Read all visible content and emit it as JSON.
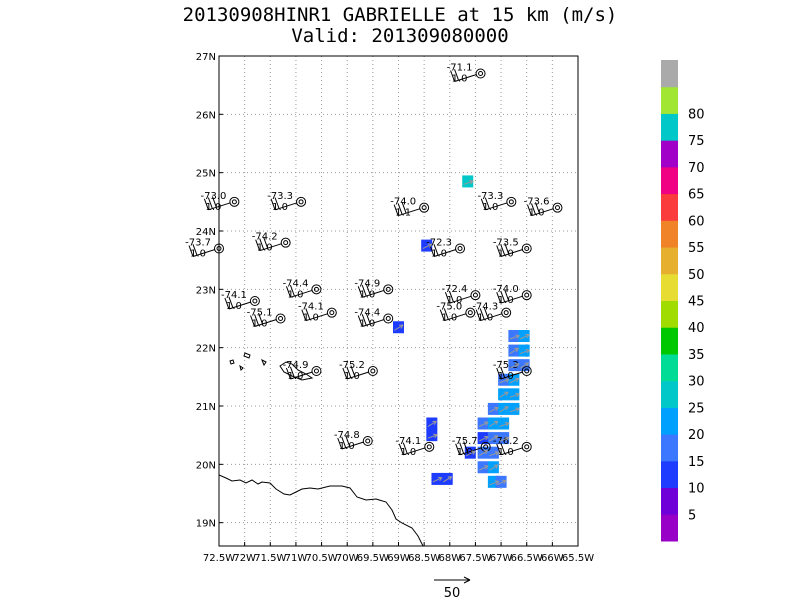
{
  "title": {
    "line1": "20130908HINR1 GABRIELLE at 15 km (m/s)",
    "line2": "Valid: 201309080000"
  },
  "map": {
    "lon_range": [
      -72.5,
      -65.5
    ],
    "lat_range": [
      18.6,
      27.0
    ],
    "lon_ticks": [
      {
        "value": -72.5,
        "label": "72.5W"
      },
      {
        "value": -72.0,
        "label": "72W"
      },
      {
        "value": -71.5,
        "label": "71.5W"
      },
      {
        "value": -71.0,
        "label": "71W"
      },
      {
        "value": -70.5,
        "label": "70.5W"
      },
      {
        "value": -70.0,
        "label": "70W"
      },
      {
        "value": -69.5,
        "label": "69.5W"
      },
      {
        "value": -69.0,
        "label": "69W"
      },
      {
        "value": -68.5,
        "label": "68.5W"
      },
      {
        "value": -68.0,
        "label": "68W"
      },
      {
        "value": -67.5,
        "label": "67.5W"
      },
      {
        "value": -67.0,
        "label": "67W"
      },
      {
        "value": -66.5,
        "label": "66.5W"
      },
      {
        "value": -66.0,
        "label": "66W"
      },
      {
        "value": -65.5,
        "label": "65.5W"
      }
    ],
    "lat_ticks": [
      {
        "value": 19,
        "label": "19N"
      },
      {
        "value": 20,
        "label": "20N"
      },
      {
        "value": 21,
        "label": "21N"
      },
      {
        "value": 22,
        "label": "22N"
      },
      {
        "value": 23,
        "label": "23N"
      },
      {
        "value": 24,
        "label": "24N"
      },
      {
        "value": 25,
        "label": "25N"
      },
      {
        "value": 26,
        "label": "26N"
      },
      {
        "value": 27,
        "label": "27N"
      }
    ],
    "grid_dotted": true,
    "vector_reference": "50",
    "colors": {
      "coastline": "#000000",
      "grid": "#999999",
      "station": "#000000",
      "vector": "#999999"
    }
  },
  "stations": [
    {
      "lon": -67.4,
      "lat": 26.7,
      "temp": "-71.1",
      "value": "1.0"
    },
    {
      "lon": -72.2,
      "lat": 24.5,
      "temp": "-73.0",
      "value": "1.0"
    },
    {
      "lon": -70.9,
      "lat": 24.5,
      "temp": "-73.3",
      "value": "1.0"
    },
    {
      "lon": -68.5,
      "lat": 24.4,
      "temp": "-74.0",
      "value": "1.1"
    },
    {
      "lon": -66.8,
      "lat": 24.5,
      "temp": "-73.3",
      "value": "1.0"
    },
    {
      "lon": -65.9,
      "lat": 24.4,
      "temp": "-73.6",
      "value": "1.0"
    },
    {
      "lon": -72.5,
      "lat": 23.7,
      "temp": "-73.7",
      "value": "1.0"
    },
    {
      "lon": -71.2,
      "lat": 23.8,
      "temp": "-74.2",
      "value": "1.0"
    },
    {
      "lon": -67.8,
      "lat": 23.7,
      "temp": "-72.3",
      "value": "1.0"
    },
    {
      "lon": -66.5,
      "lat": 23.7,
      "temp": "-73.5",
      "value": "1.0"
    },
    {
      "lon": -70.6,
      "lat": 23.0,
      "temp": "-74.4",
      "value": "1.0"
    },
    {
      "lon": -69.2,
      "lat": 23.0,
      "temp": "-74.9",
      "value": "1.0"
    },
    {
      "lon": -67.5,
      "lat": 22.9,
      "temp": "-72.4",
      "value": "1.0"
    },
    {
      "lon": -66.5,
      "lat": 22.9,
      "temp": "-74.0",
      "value": "1.0"
    },
    {
      "lon": -71.8,
      "lat": 22.8,
      "temp": "-74.1",
      "value": "1.0"
    },
    {
      "lon": -71.3,
      "lat": 22.5,
      "temp": "-75.1",
      "value": "1.0"
    },
    {
      "lon": -70.3,
      "lat": 22.6,
      "temp": "-74.1",
      "value": "1.0"
    },
    {
      "lon": -69.2,
      "lat": 22.5,
      "temp": "-74.4",
      "value": "1.0"
    },
    {
      "lon": -67.6,
      "lat": 22.6,
      "temp": "-75.0",
      "value": "1.0"
    },
    {
      "lon": -66.9,
      "lat": 22.6,
      "temp": "-74.3",
      "value": "1.0"
    },
    {
      "lon": -70.6,
      "lat": 21.6,
      "temp": "-74.9",
      "value": "1.0"
    },
    {
      "lon": -69.5,
      "lat": 21.6,
      "temp": "-75.2",
      "value": "1.0"
    },
    {
      "lon": -66.5,
      "lat": 21.6,
      "temp": "-75.3",
      "value": "1.0"
    },
    {
      "lon": -69.6,
      "lat": 20.4,
      "temp": "-74.8",
      "value": "1.0"
    },
    {
      "lon": -68.4,
      "lat": 20.3,
      "temp": "-74.1",
      "value": "1.0"
    },
    {
      "lon": -67.3,
      "lat": 20.3,
      "temp": "-75.7",
      "value": "1.0"
    },
    {
      "lon": -66.5,
      "lat": 20.3,
      "temp": "-76.2",
      "value": "1.0"
    }
  ],
  "wind_cells": [
    {
      "lon": -67.65,
      "lat": 24.85,
      "level": 25
    },
    {
      "lon": -68.45,
      "lat": 23.75,
      "level": 10
    },
    {
      "lon": -69.0,
      "lat": 22.35,
      "level": 10
    },
    {
      "lon": -66.75,
      "lat": 22.2,
      "level": 15
    },
    {
      "lon": -66.55,
      "lat": 22.2,
      "level": 20
    },
    {
      "lon": -66.75,
      "lat": 21.95,
      "level": 15
    },
    {
      "lon": -66.55,
      "lat": 21.95,
      "level": 20
    },
    {
      "lon": -66.75,
      "lat": 21.7,
      "level": 15
    },
    {
      "lon": -66.55,
      "lat": 21.7,
      "level": 15
    },
    {
      "lon": -66.95,
      "lat": 21.45,
      "level": 15
    },
    {
      "lon": -66.75,
      "lat": 21.45,
      "level": 20
    },
    {
      "lon": -66.95,
      "lat": 21.2,
      "level": 20
    },
    {
      "lon": -66.75,
      "lat": 21.2,
      "level": 20
    },
    {
      "lon": -67.15,
      "lat": 20.95,
      "level": 15
    },
    {
      "lon": -66.95,
      "lat": 20.95,
      "level": 20
    },
    {
      "lon": -66.75,
      "lat": 20.95,
      "level": 20
    },
    {
      "lon": -67.35,
      "lat": 20.7,
      "level": 15
    },
    {
      "lon": -67.15,
      "lat": 20.7,
      "level": 20
    },
    {
      "lon": -66.95,
      "lat": 20.7,
      "level": 20
    },
    {
      "lon": -67.35,
      "lat": 20.45,
      "level": 10
    },
    {
      "lon": -67.15,
      "lat": 20.45,
      "level": 15
    },
    {
      "lon": -66.95,
      "lat": 20.45,
      "level": 15
    },
    {
      "lon": -67.6,
      "lat": 20.2,
      "level": 10
    },
    {
      "lon": -67.35,
      "lat": 20.2,
      "level": 15
    },
    {
      "lon": -67.15,
      "lat": 20.2,
      "level": 15
    },
    {
      "lon": -67.35,
      "lat": 19.95,
      "level": 15
    },
    {
      "lon": -67.15,
      "lat": 19.95,
      "level": 20
    },
    {
      "lon": -67.15,
      "lat": 19.7,
      "level": 20
    },
    {
      "lon": -67.0,
      "lat": 19.7,
      "level": 15
    },
    {
      "lon": -68.35,
      "lat": 20.7,
      "level": 10
    },
    {
      "lon": -68.35,
      "lat": 20.5,
      "level": 10
    },
    {
      "lon": -68.25,
      "lat": 19.75,
      "level": 10
    },
    {
      "lon": -68.05,
      "lat": 19.75,
      "level": 10
    }
  ],
  "colorbar": {
    "colors": [
      "#9800c8",
      "#7000d8",
      "#1e3cff",
      "#3c78ff",
      "#00a0ff",
      "#00c8c8",
      "#00dc96",
      "#00c800",
      "#a0dc00",
      "#e6dc32",
      "#e6af2d",
      "#f08228",
      "#fa3c3c",
      "#f00082",
      "#a000c8",
      "#00c8c8",
      "#a0e632",
      "#aaaaaa"
    ],
    "labels": [
      "5",
      "10",
      "15",
      "20",
      "25",
      "30",
      "35",
      "40",
      "45",
      "50",
      "55",
      "60",
      "65",
      "70",
      "75",
      "80"
    ]
  }
}
